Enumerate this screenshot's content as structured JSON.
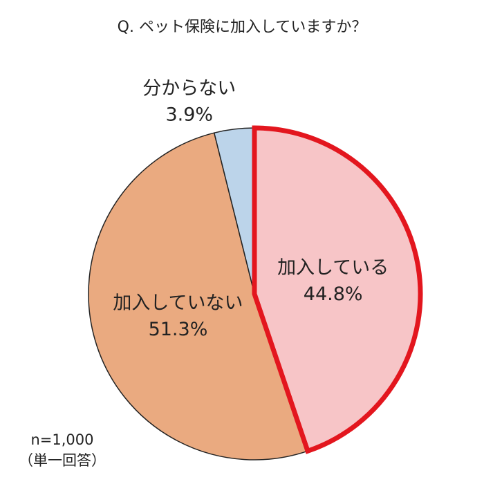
{
  "chart_data": {
    "type": "pie",
    "title": "Q. ペット保険に加入していますか？",
    "categories": [
      "加入している",
      "加入していない",
      "分からない"
    ],
    "values": [
      44.8,
      51.3,
      3.9
    ],
    "value_labels": [
      "44.8%",
      "51.3%",
      "3.9%"
    ],
    "colors": [
      "#f7c5c7",
      "#eaaa80",
      "#bcd4ea"
    ],
    "edge_colors": [
      "#e3161e",
      "#222222",
      "#222222"
    ],
    "note": [
      "n=1,000",
      "（単一回答）"
    ]
  }
}
